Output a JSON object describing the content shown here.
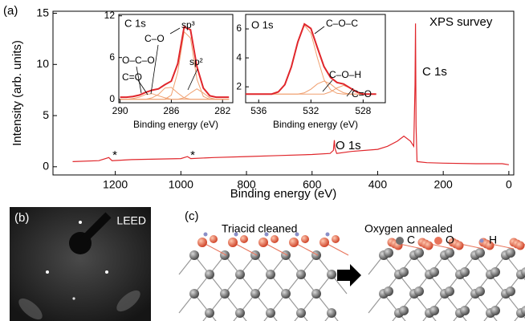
{
  "panel_labels": {
    "a": "(a)",
    "b": "(b)",
    "c": "(c)"
  },
  "chart_data": [
    {
      "type": "line",
      "x_label": "Binding energy (eV)",
      "y_label": "Intensity (arb. units)",
      "x": [
        1330,
        1250,
        1220,
        1210,
        1150,
        1000,
        980,
        970,
        900,
        800,
        700,
        600,
        545,
        535,
        532,
        530,
        525,
        480,
        400,
        370,
        340,
        320,
        300,
        290,
        286,
        284.5,
        283,
        280,
        250,
        200,
        100,
        20,
        0
      ],
      "series": [
        {
          "color": "#e0262b",
          "values": [
            0.5,
            0.6,
            0.9,
            0.6,
            0.7,
            0.8,
            1.0,
            0.8,
            0.9,
            1.0,
            1.1,
            1.2,
            1.3,
            1.6,
            2.6,
            1.8,
            1.3,
            1.5,
            1.7,
            2.0,
            2.5,
            3.0,
            2.5,
            2.0,
            8,
            14.0,
            4,
            0.5,
            0.4,
            0.35,
            0.3,
            0.3,
            0.2
          ]
        }
      ],
      "xlim": [
        1390,
        -15
      ],
      "ylim": [
        -0.8,
        15.2
      ],
      "xticks": [
        1200,
        1000,
        800,
        600,
        400,
        200,
        0
      ],
      "yticks": [
        0,
        5,
        10,
        15
      ],
      "annotations": [
        "XPS survey",
        "C 1s",
        "O 1s",
        "*",
        "*"
      ]
    },
    {
      "type": "line",
      "title": "C 1s",
      "x_label": "Binding energy (eV)",
      "x": [
        290,
        289.5,
        289,
        288.5,
        288,
        287.5,
        287,
        286.5,
        286,
        285.5,
        285,
        284.5,
        284,
        283.5,
        283,
        282.5,
        282,
        281.5
      ],
      "series": [
        {
          "color": "#e0262b",
          "values": [
            0.3,
            0.3,
            0.4,
            0.6,
            1.0,
            1.3,
            1.5,
            2.1,
            2.6,
            5.1,
            10.4,
            10.0,
            4.7,
            1.6,
            0.5,
            0.3,
            0.3,
            0.3
          ]
        },
        {
          "color": "#f0a070",
          "values": [
            0,
            0,
            0,
            0,
            0,
            0,
            0,
            0,
            0.6,
            3.9,
            9.7,
            8.8,
            2.9,
            0.4,
            0,
            0,
            0,
            0
          ]
        },
        {
          "color": "#f0a070",
          "values": [
            0,
            0,
            0,
            0,
            0,
            0,
            0,
            0,
            0,
            0,
            0.2,
            0.9,
            1.5,
            0.9,
            0.2,
            0,
            0,
            0
          ]
        },
        {
          "color": "#f0a070",
          "values": [
            0,
            0,
            0,
            0,
            0,
            0.2,
            0.7,
            1.6,
            1.7,
            0.9,
            0.2,
            0,
            0,
            0,
            0,
            0,
            0,
            0
          ]
        },
        {
          "color": "#f0a070",
          "values": [
            0,
            0,
            0.1,
            0.3,
            0.7,
            0.8,
            0.5,
            0.2,
            0,
            0,
            0,
            0,
            0,
            0,
            0,
            0,
            0,
            0
          ]
        }
      ],
      "xlim": [
        290.1,
        281.2
      ],
      "ylim": [
        -0.5,
        12.2
      ],
      "xticks": [
        290,
        286,
        282
      ],
      "yticks": [
        0,
        6,
        12
      ],
      "annotations": [
        "C–O",
        "O–C–O",
        "C=O",
        "sp³",
        "sp²"
      ]
    },
    {
      "type": "line",
      "title": "O 1s",
      "x_label": "Binding energy (eV)",
      "x": [
        537,
        536.5,
        536,
        535.5,
        535,
        534.5,
        534,
        533.5,
        533,
        532.5,
        532,
        531.5,
        531,
        530.5,
        530,
        529.5,
        529,
        528.5,
        528,
        527.5,
        527
      ],
      "series": [
        {
          "color": "#e0262b",
          "values": [
            1.5,
            1.5,
            1.5,
            1.5,
            1.5,
            1.65,
            2.15,
            3.37,
            5.1,
            6.34,
            6.03,
            4.7,
            3.4,
            2.65,
            2.3,
            2.19,
            1.92,
            1.65,
            1.5,
            1.5,
            1.5
          ]
        },
        {
          "color": "#f0a070",
          "values": [
            1.5,
            1.5,
            1.5,
            1.5,
            1.5,
            1.65,
            2.15,
            3.37,
            5.1,
            6.25,
            5.7,
            4.0,
            2.5,
            1.8,
            1.55,
            1.5,
            1.5,
            1.5,
            1.5,
            1.5,
            1.5
          ]
        },
        {
          "color": "#f0a070",
          "values": [
            1.5,
            1.5,
            1.5,
            1.5,
            1.5,
            1.5,
            1.5,
            1.5,
            1.5,
            1.59,
            1.83,
            2.2,
            2.4,
            2.2,
            1.83,
            1.59,
            1.5,
            1.5,
            1.5,
            1.5,
            1.5
          ]
        },
        {
          "color": "#f0a070",
          "values": [
            1.5,
            1.5,
            1.5,
            1.5,
            1.5,
            1.5,
            1.5,
            1.5,
            1.5,
            1.5,
            1.5,
            1.5,
            1.5,
            1.65,
            1.92,
            2.1,
            1.92,
            1.65,
            1.5,
            1.5,
            1.5
          ]
        }
      ],
      "xlim": [
        537.0,
        526.3
      ],
      "ylim": [
        0.9,
        7.0
      ],
      "xticks": [
        536,
        532,
        528
      ],
      "yticks": [
        2,
        4,
        6
      ],
      "annotations": [
        "C–O–C",
        "C–O–H",
        "C=O"
      ]
    }
  ],
  "leed": {
    "label": "LEED"
  },
  "models": {
    "left_title": "Triacid cleaned",
    "right_title": "Oxygen annealed",
    "legend": [
      {
        "label": "C",
        "color": "#6e6e6e"
      },
      {
        "label": "O",
        "color": "#e8735a"
      },
      {
        "label": "H",
        "color": "#8a8fc8"
      }
    ]
  }
}
